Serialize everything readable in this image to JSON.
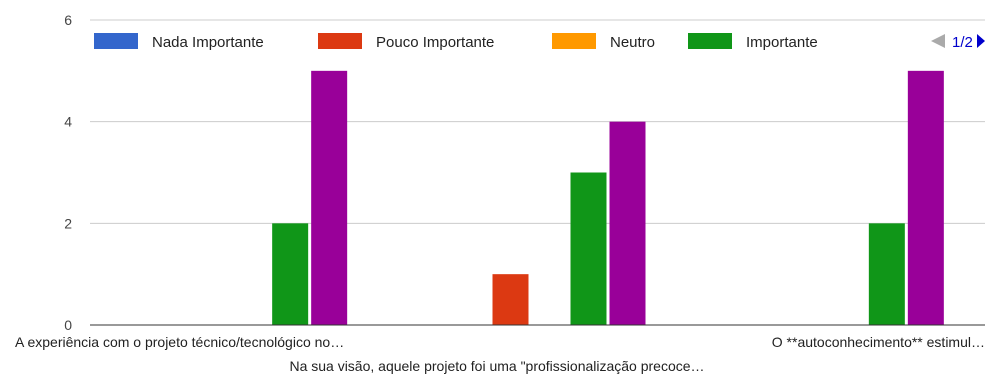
{
  "chart_data": {
    "type": "bar",
    "categories": [
      "A experiência com o projeto técnico/tecnológico no…",
      "Na sua visão, aquele projeto foi uma \"profissionalização precoce…",
      "O **autoconhecimento** estimul…"
    ],
    "series": [
      {
        "name": "Nada Importante",
        "color": "#3366cc",
        "values": [
          0,
          0,
          0
        ]
      },
      {
        "name": "Pouco Importante",
        "color": "#dc3912",
        "values": [
          0,
          1,
          0
        ]
      },
      {
        "name": "Neutro",
        "color": "#ff9900",
        "values": [
          0,
          0,
          0
        ]
      },
      {
        "name": "Importante",
        "color": "#109618",
        "values": [
          2,
          3,
          2
        ]
      },
      {
        "name": "",
        "color": "#990099",
        "values": [
          5,
          4,
          5
        ]
      }
    ],
    "ylim": [
      0,
      6
    ],
    "yticks": [
      0,
      2,
      4,
      6
    ],
    "grid": true,
    "legend_position": "top",
    "pager": "1/2"
  }
}
